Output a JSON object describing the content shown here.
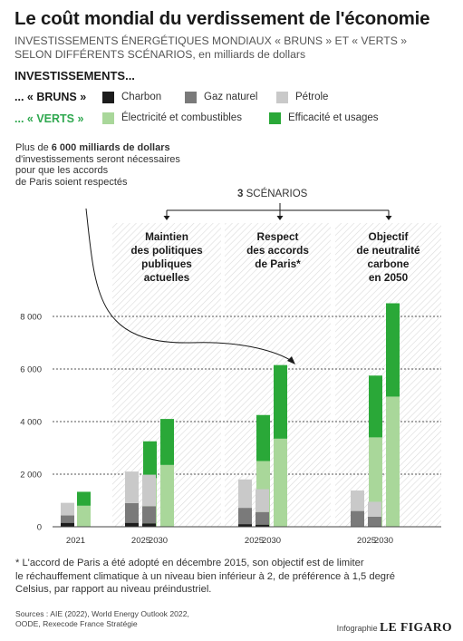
{
  "header": {
    "title": "Le coût mondial du verdissement de l'économie",
    "subtitle_line1": "INVESTISSEMENTS ÉNERGÉTIQUES MONDIAUX « BRUNS » ET « VERTS »",
    "subtitle_line2_caps": "SELON DIFFÉRENTS SCÉNARIOS,",
    "subtitle_line2_rest": " en milliards de dollars"
  },
  "legend": {
    "heading": "INVESTISSEMENTS...",
    "bruns_label": "... « BRUNS »",
    "verts_label": "... « VERTS »",
    "items": [
      {
        "label": "Charbon",
        "color": "#1c1c1c"
      },
      {
        "label": "Gaz naturel",
        "color": "#7a7a7a"
      },
      {
        "label": "Pétrole",
        "color": "#c9c9c9"
      },
      {
        "label": "Électricité et combustibles",
        "color": "#a9d79a"
      },
      {
        "label": "Efficacité et usages",
        "color": "#2aa838"
      }
    ]
  },
  "note": {
    "prefix": "Plus de ",
    "bold": "6 000 milliards de dollars",
    "line2": "d'investissements seront nécessaires",
    "line3": "pour que les accords",
    "line4": "de Paris soient respectés"
  },
  "scenarios_header": {
    "count": "3",
    "label": " SCÉNARIOS"
  },
  "panels": [
    {
      "title": [
        "Maintien",
        "des politiques",
        "publiques",
        "actuelles"
      ]
    },
    {
      "title": [
        "Respect",
        "des accords",
        "de Paris*"
      ]
    },
    {
      "title": [
        "Objectif",
        "de neutralité",
        "carbone",
        "en 2050"
      ]
    }
  ],
  "chart_data": {
    "type": "bar",
    "stacked": true,
    "ylim": [
      0,
      9000
    ],
    "yticks": [
      0,
      2000,
      4000,
      6000,
      8000
    ],
    "ytick_labels": [
      "0",
      "2 000",
      "4 000",
      "6 000",
      "8 000"
    ],
    "x_labels": [
      "2021",
      "2025",
      "2030",
      "2025",
      "2030",
      "2025",
      "2030"
    ],
    "groups": [
      {
        "scenario": "",
        "bars": [
          {
            "year": "2021",
            "brown": {
              "Charbon": 150,
              "Gaz naturel": 280,
              "Pétrole": 480
            },
            "green": {
              "Électricité et combustibles": 800,
              "Efficacité et usages": 530
            }
          }
        ]
      },
      {
        "scenario": "Maintien des politiques publiques actuelles",
        "bars": [
          {
            "year": "2025",
            "brown": {
              "Charbon": 150,
              "Gaz naturel": 750,
              "Pétrole": 1200
            },
            "green": {
              "Électricité et combustibles": 1850,
              "Efficacité et usages": 1400
            }
          },
          {
            "year": "2030",
            "brown": {
              "Charbon": 130,
              "Gaz naturel": 650,
              "Pétrole": 1200
            },
            "green": {
              "Électricité et combustibles": 2350,
              "Efficacité et usages": 1750
            }
          }
        ]
      },
      {
        "scenario": "Respect des accords de Paris*",
        "bars": [
          {
            "year": "2025",
            "brown": {
              "Charbon": 100,
              "Gaz naturel": 620,
              "Pétrole": 1080
            },
            "green": {
              "Électricité et combustibles": 2500,
              "Efficacité et usages": 1750
            }
          },
          {
            "year": "2030",
            "brown": {
              "Charbon": 80,
              "Gaz naturel": 480,
              "Pétrole": 870
            },
            "green": {
              "Électricité et combustibles": 3350,
              "Efficacité et usages": 2800
            }
          }
        ]
      },
      {
        "scenario": "Objectif de neutralité carbone en 2050",
        "bars": [
          {
            "year": "2025",
            "brown": {
              "Charbon": 20,
              "Gaz naturel": 580,
              "Pétrole": 780
            },
            "green": {
              "Électricité et combustibles": 3400,
              "Efficacité et usages": 2350
            }
          },
          {
            "year": "2030",
            "brown": {
              "Charbon": 10,
              "Gaz naturel": 370,
              "Pétrole": 570
            },
            "green": {
              "Électricité et combustibles": 4950,
              "Efficacité et usages": 3550
            }
          }
        ]
      }
    ]
  },
  "footnote": {
    "line1": "* L'accord de Paris a été adopté en décembre 2015, son objectif est de limiter",
    "line2": "le réchauffement climatique à un niveau bien inférieur à 2, de préférence à 1,5 degré",
    "line3": "Celsius, par rapport au niveau préindustriel."
  },
  "sources": {
    "line1": "Sources : AIE (2022), World Energy Outlook 2022,",
    "line2": "OODE, Rexecode France Stratégie"
  },
  "brand": {
    "pre": "Infographie ",
    "logo": "LE FIGARO"
  }
}
